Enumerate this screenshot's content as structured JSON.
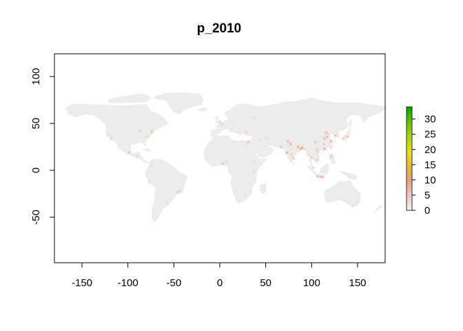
{
  "chart_data": {
    "type": "heatmap",
    "title": "p_2010",
    "xlabel": "",
    "ylabel": "",
    "xlim": [
      -180,
      180
    ],
    "ylim": [
      -90,
      90
    ],
    "x_ticks": [
      -150,
      -100,
      -50,
      0,
      50,
      100,
      150
    ],
    "y_ticks": [
      -50,
      0,
      50,
      100
    ],
    "legend": {
      "placement": "right",
      "min": 0,
      "max": 34,
      "ticks": [
        0,
        5,
        10,
        15,
        20,
        25,
        30
      ],
      "colors": [
        "#f2f2f2",
        "#f0c9c0",
        "#eba07a",
        "#e6b83a",
        "#e3e01c",
        "#a8d214",
        "#61c10a",
        "#00a600"
      ]
    },
    "land_color": "#ececec",
    "hotspots": [
      {
        "lon": -74,
        "lat": 41,
        "v": 8
      },
      {
        "lon": -80,
        "lat": 36,
        "v": 5
      },
      {
        "lon": -87,
        "lat": 42,
        "v": 5
      },
      {
        "lon": -118,
        "lat": 34,
        "v": 6
      },
      {
        "lon": -122,
        "lat": 38,
        "v": 4
      },
      {
        "lon": -99,
        "lat": 19,
        "v": 7
      },
      {
        "lon": -90,
        "lat": 15,
        "v": 4
      },
      {
        "lon": -74,
        "lat": 5,
        "v": 4
      },
      {
        "lon": -77,
        "lat": -12,
        "v": 4
      },
      {
        "lon": -46,
        "lat": -23,
        "v": 6
      },
      {
        "lon": -43,
        "lat": -22,
        "v": 5
      },
      {
        "lon": -58,
        "lat": -34,
        "v": 4
      },
      {
        "lon": 0,
        "lat": 51,
        "v": 5
      },
      {
        "lon": 2,
        "lat": 49,
        "v": 5
      },
      {
        "lon": 13,
        "lat": 52,
        "v": 3
      },
      {
        "lon": 12,
        "lat": 42,
        "v": 3
      },
      {
        "lon": 37,
        "lat": 56,
        "v": 4
      },
      {
        "lon": 29,
        "lat": 41,
        "v": 5
      },
      {
        "lon": 31,
        "lat": 30,
        "v": 8
      },
      {
        "lon": 3,
        "lat": 7,
        "v": 7
      },
      {
        "lon": 7,
        "lat": 9,
        "v": 5
      },
      {
        "lon": 37,
        "lat": 9,
        "v": 4
      },
      {
        "lon": 37,
        "lat": -1,
        "v": 4
      },
      {
        "lon": 28,
        "lat": -26,
        "v": 4
      },
      {
        "lon": 51,
        "lat": 35,
        "v": 4
      },
      {
        "lon": 44,
        "lat": 33,
        "v": 4
      },
      {
        "lon": 67,
        "lat": 25,
        "v": 8
      },
      {
        "lon": 74,
        "lat": 31,
        "v": 8
      },
      {
        "lon": 77,
        "lat": 28,
        "v": 11
      },
      {
        "lon": 73,
        "lat": 19,
        "v": 10
      },
      {
        "lon": 80,
        "lat": 13,
        "v": 7
      },
      {
        "lon": 78,
        "lat": 17,
        "v": 6
      },
      {
        "lon": 85,
        "lat": 25,
        "v": 9
      },
      {
        "lon": 88,
        "lat": 23,
        "v": 11
      },
      {
        "lon": 90,
        "lat": 24,
        "v": 12
      },
      {
        "lon": 96,
        "lat": 17,
        "v": 5
      },
      {
        "lon": 100,
        "lat": 14,
        "v": 6
      },
      {
        "lon": 106,
        "lat": 21,
        "v": 7
      },
      {
        "lon": 106,
        "lat": 11,
        "v": 6
      },
      {
        "lon": 104,
        "lat": 30,
        "v": 7
      },
      {
        "lon": 114,
        "lat": 23,
        "v": 10
      },
      {
        "lon": 121,
        "lat": 31,
        "v": 11
      },
      {
        "lon": 116,
        "lat": 40,
        "v": 9
      },
      {
        "lon": 117,
        "lat": 36,
        "v": 8
      },
      {
        "lon": 114,
        "lat": 34,
        "v": 9
      },
      {
        "lon": 113,
        "lat": 28,
        "v": 6
      },
      {
        "lon": 126,
        "lat": 37,
        "v": 8
      },
      {
        "lon": 139,
        "lat": 36,
        "v": 9
      },
      {
        "lon": 135,
        "lat": 34,
        "v": 7
      },
      {
        "lon": 121,
        "lat": 25,
        "v": 6
      },
      {
        "lon": 121,
        "lat": 15,
        "v": 7
      },
      {
        "lon": 107,
        "lat": -6,
        "v": 10
      },
      {
        "lon": 112,
        "lat": -7,
        "v": 8
      },
      {
        "lon": 110,
        "lat": -7,
        "v": 8
      },
      {
        "lon": 101,
        "lat": 3,
        "v": 4
      },
      {
        "lon": 151,
        "lat": -34,
        "v": 3
      },
      {
        "lon": 145,
        "lat": -38,
        "v": 3
      }
    ]
  }
}
